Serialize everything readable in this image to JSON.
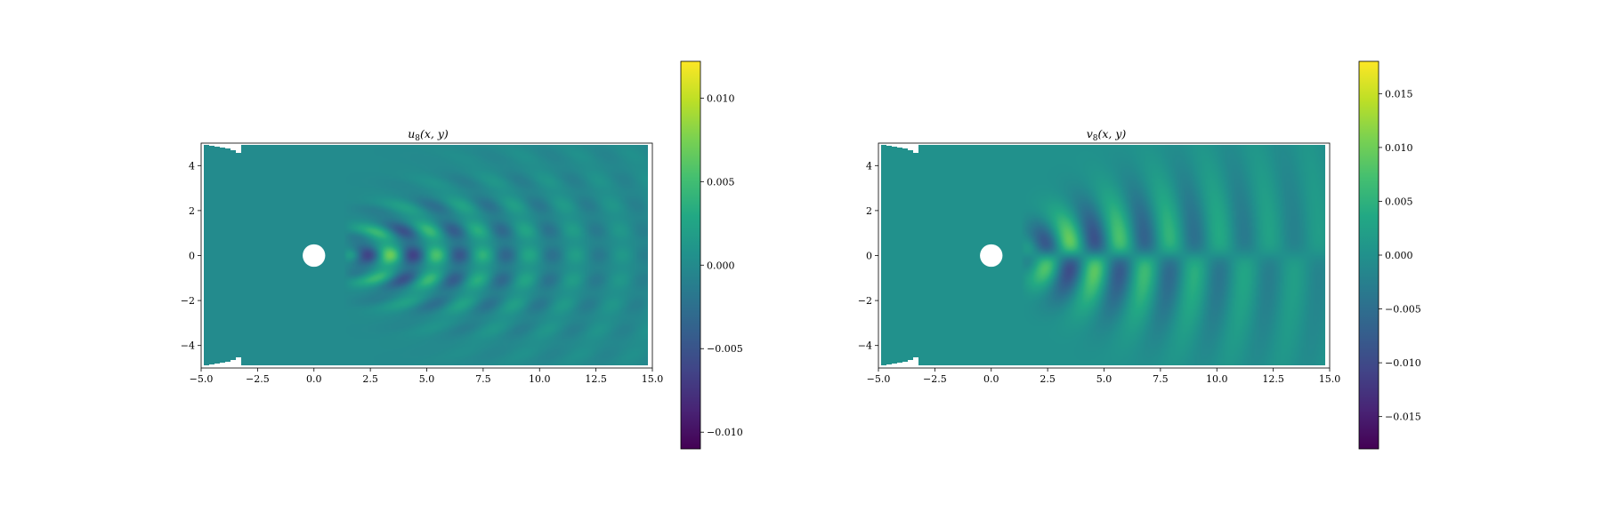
{
  "chart_data": [
    {
      "type": "heatmap",
      "title": "u_8(x, y)",
      "title_main": "u",
      "title_sub": "8",
      "title_args": "(x, y)",
      "xlim": [
        -5,
        15
      ],
      "ylim": [
        -5,
        5
      ],
      "xticks": [
        "−5.0",
        "−2.5",
        "0.0",
        "2.5",
        "5.0",
        "7.5",
        "10.0",
        "12.5",
        "15.0"
      ],
      "xtick_values": [
        -5,
        -2.5,
        0,
        2.5,
        5,
        7.5,
        10,
        12.5,
        15
      ],
      "yticks": [
        "4",
        "2",
        "0",
        "−2",
        "−4"
      ],
      "ytick_values": [
        4,
        2,
        0,
        -2,
        -4
      ],
      "colormap": "viridis",
      "colorbar": {
        "min": -0.011,
        "max": 0.0122,
        "ticks": [
          "0.010",
          "0.005",
          "0.000",
          "−0.005",
          "−0.010"
        ],
        "tick_values": [
          0.01,
          0.005,
          0.0,
          -0.005,
          -0.01
        ]
      },
      "obstacle": {
        "shape": "circle",
        "center": [
          0,
          0
        ],
        "radius": 0.5
      },
      "field": {
        "component": "u",
        "description": "wave pattern symmetric about y = 0 behind the cylinder",
        "wave_start_x": 1.3,
        "peak_amplitude": 0.0115
      }
    },
    {
      "type": "heatmap",
      "title": "v_8(x, y)",
      "title_main": "v",
      "title_sub": "8",
      "title_args": "(x, y)",
      "xlim": [
        -5,
        15
      ],
      "ylim": [
        -5,
        5
      ],
      "xticks": [
        "−5.0",
        "−2.5",
        "0.0",
        "2.5",
        "5.0",
        "7.5",
        "10.0",
        "12.5",
        "15.0"
      ],
      "xtick_values": [
        -5,
        -2.5,
        0,
        2.5,
        5,
        7.5,
        10,
        12.5,
        15
      ],
      "yticks": [
        "4",
        "2",
        "0",
        "−2",
        "−4"
      ],
      "ytick_values": [
        4,
        2,
        0,
        -2,
        -4
      ],
      "colormap": "viridis",
      "colorbar": {
        "min": -0.018,
        "max": 0.018,
        "ticks": [
          "0.015",
          "0.010",
          "0.005",
          "0.000",
          "−0.005",
          "−0.010",
          "−0.015"
        ],
        "tick_values": [
          0.015,
          0.01,
          0.005,
          0.0,
          -0.005,
          -0.01,
          -0.015
        ]
      },
      "obstacle": {
        "shape": "circle",
        "center": [
          0,
          0
        ],
        "radius": 0.5
      },
      "field": {
        "component": "v",
        "description": "wave pattern antisymmetric about y = 0 behind the cylinder",
        "wave_start_x": 1.3,
        "peak_amplitude": 0.0175
      }
    }
  ],
  "colors": {
    "background_field": "#21918c",
    "viridis_low": "#440154",
    "viridis_high": "#fde725",
    "obstacle": "#ffffff"
  }
}
